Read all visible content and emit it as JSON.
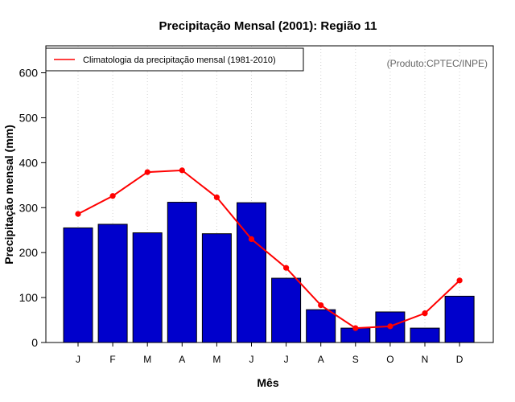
{
  "chart_data": {
    "type": "bar",
    "title": "Precipitação Mensal (2001): Região 11",
    "xlabel": "Mês",
    "ylabel": "Precipitação mensal (mm)",
    "ylim": [
      0,
      660
    ],
    "yticks": [
      0,
      100,
      200,
      300,
      400,
      500,
      600
    ],
    "grid": "vertical-dotted",
    "categories": [
      "J",
      "F",
      "M",
      "A",
      "M",
      "J",
      "J",
      "A",
      "S",
      "O",
      "N",
      "D"
    ],
    "series": [
      {
        "name": "Precipitação mensal (2001)",
        "kind": "bar",
        "color": "#0000cc",
        "values": [
          255,
          263,
          244,
          312,
          242,
          311,
          143,
          73,
          32,
          68,
          32,
          103
        ]
      },
      {
        "name": "Climatologia da precipitação mensal (1981-2010)",
        "kind": "line",
        "color": "#ff0000",
        "values": [
          286,
          326,
          379,
          383,
          323,
          230,
          166,
          83,
          32,
          36,
          65,
          138
        ]
      }
    ],
    "legend": {
      "position": "top-left",
      "entries": [
        "Climatologia da precipitação mensal (1981-2010)"
      ]
    },
    "annotation": "(Produto:CPTEC/INPE)"
  }
}
